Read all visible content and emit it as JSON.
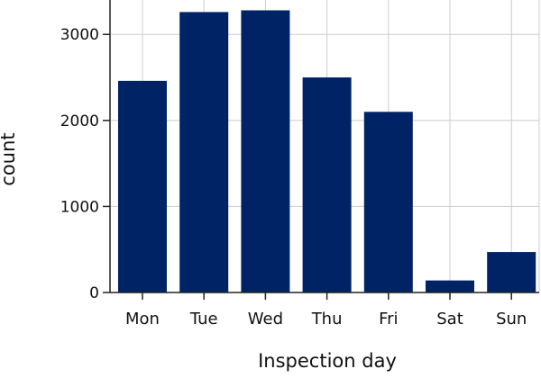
{
  "chart_data": {
    "type": "bar",
    "title": "",
    "xlabel": "Inspection day",
    "ylabel": "count",
    "categories": [
      "Mon",
      "Tue",
      "Wed",
      "Thu",
      "Fri",
      "Sat",
      "Sun"
    ],
    "values": [
      2460,
      3260,
      3280,
      2500,
      2100,
      140,
      470
    ],
    "ylim": [
      0,
      3400
    ],
    "yticks": [
      0,
      1000,
      2000,
      3000
    ],
    "grid": true,
    "legend": "none",
    "colors": {
      "bar": "#002366",
      "grid": "#cccccc",
      "axis": "#222222"
    }
  }
}
